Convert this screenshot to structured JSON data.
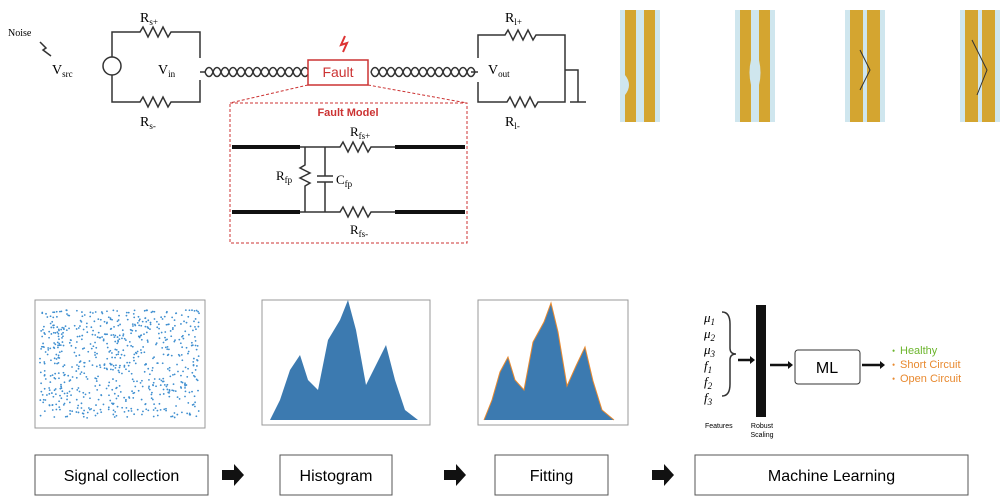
{
  "circuit": {
    "noise": "Noise",
    "v_src": {
      "main": "V",
      "sub": "src"
    },
    "v_in": {
      "main": "V",
      "sub": "in"
    },
    "v_out": {
      "main": "V",
      "sub": "out"
    },
    "r_s_plus": {
      "main": "R",
      "sub": "s+"
    },
    "r_s_minus": {
      "main": "R",
      "sub": "s-"
    },
    "r_l_plus": {
      "main": "R",
      "sub": "l+"
    },
    "r_l_minus": {
      "main": "R",
      "sub": "l-"
    },
    "fault": "Fault"
  },
  "fault_model": {
    "title": "Fault Model",
    "r_fp": {
      "main": "R",
      "sub": "fp"
    },
    "c_fp": {
      "main": "C",
      "sub": "fp"
    },
    "r_fs_plus": {
      "main": "R",
      "sub": "fs+"
    },
    "r_fs_minus": {
      "main": "R",
      "sub": "fs-"
    }
  },
  "pipeline": {
    "steps": [
      "Signal collection",
      "Histogram",
      "Fitting",
      "Machine Learning"
    ],
    "features": [
      {
        "main": "μ",
        "sub": "1"
      },
      {
        "main": "μ",
        "sub": "2"
      },
      {
        "main": "μ",
        "sub": "3"
      },
      {
        "main": "f",
        "sub": "1"
      },
      {
        "main": "f",
        "sub": "2"
      },
      {
        "main": "f",
        "sub": "3"
      }
    ],
    "features_label": "Features",
    "scaling_label": [
      "Robust",
      "Scaling"
    ],
    "ml": "ML",
    "outputs": [
      {
        "text": "Healthy",
        "color": "#6cb52d"
      },
      {
        "text": "Short Circuit",
        "color": "#e8892f"
      },
      {
        "text": "Open Circuit",
        "color": "#e8892f"
      }
    ]
  }
}
